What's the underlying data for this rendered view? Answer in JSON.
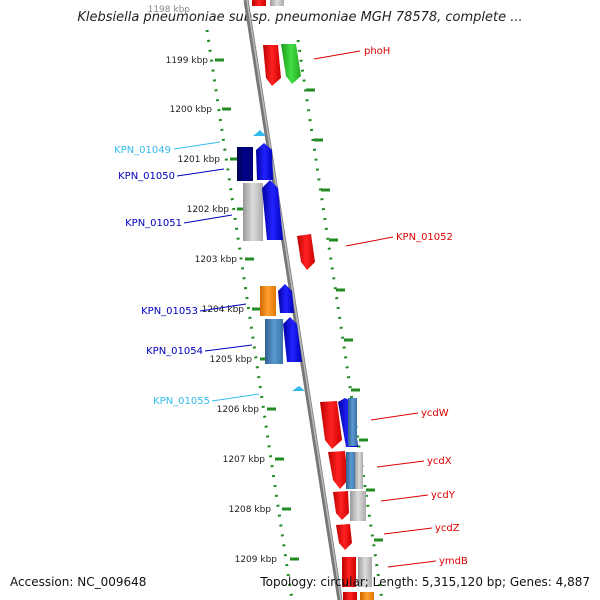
{
  "title": "Klebsiella pneumoniae subsp. pneumoniae MGH 78578, complete ...",
  "accession": "Accession: NC_009648",
  "topology": "Topology: circular; Length: 5,315,120 bp; Genes: 4,887",
  "ruler": {
    "ticks": [
      "1198 kbp",
      "1199 kbp",
      "1200 kbp",
      "1201 kbp",
      "1202 kbp",
      "1203 kbp",
      "1204 kbp",
      "1205 kbp",
      "1206 kbp",
      "1207 kbp",
      "1208 kbp",
      "1209 kbp"
    ]
  },
  "gene_labels": [
    {
      "name": "phoH",
      "color": "#dd0000",
      "side": "right"
    },
    {
      "name": "KPN_01049",
      "color": "#33bbee",
      "side": "left"
    },
    {
      "name": "KPN_01050",
      "color": "#0000bb",
      "side": "left"
    },
    {
      "name": "KPN_01051",
      "color": "#0000bb",
      "side": "left"
    },
    {
      "name": "KPN_01052",
      "color": "#dd0000",
      "side": "right"
    },
    {
      "name": "KPN_01053",
      "color": "#0000bb",
      "side": "left"
    },
    {
      "name": "KPN_01054",
      "color": "#0000bb",
      "side": "left"
    },
    {
      "name": "KPN_01055",
      "color": "#33bbee",
      "side": "left"
    },
    {
      "name": "ycdW",
      "color": "#dd0000",
      "side": "right"
    },
    {
      "name": "ycdX",
      "color": "#dd0000",
      "side": "right"
    },
    {
      "name": "ycdY",
      "color": "#dd0000",
      "side": "right"
    },
    {
      "name": "ycdZ",
      "color": "#dd0000",
      "side": "right"
    },
    {
      "name": "ymdB",
      "color": "#dd0000",
      "side": "right"
    }
  ],
  "colors": {
    "forward_red": "#ee1111",
    "green": "#33cc33",
    "blue": "#1111ee",
    "navy": "#00008b",
    "steel": "#4682b4",
    "orange": "#ff8c00",
    "gray": "#c0c0c0",
    "cyan_marker": "#33bbee",
    "dots": "#228b22"
  }
}
